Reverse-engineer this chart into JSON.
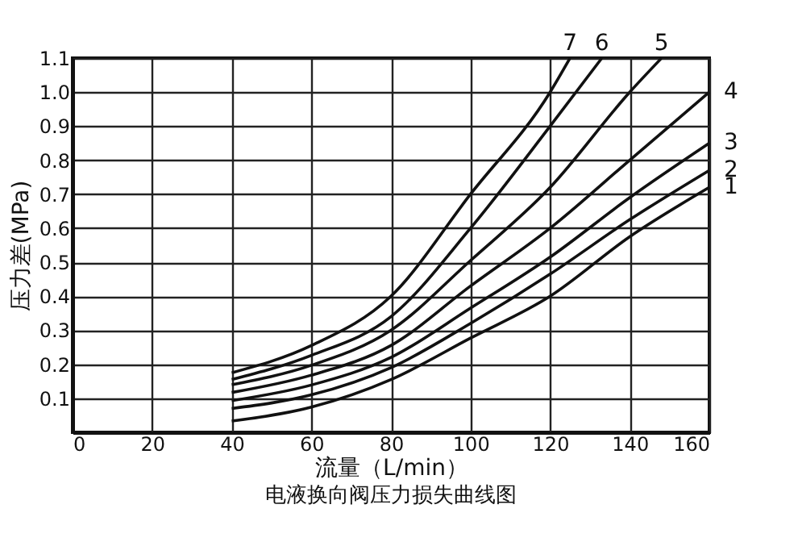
{
  "chart_data": {
    "type": "line",
    "title": "电液换向阀压力损失曲线图",
    "xlabel": "流量（L/min）",
    "ylabel": "压力差(MPa)",
    "xlim": [
      0,
      160
    ],
    "xticks": [
      0,
      20,
      40,
      60,
      80,
      100,
      120,
      140,
      160
    ],
    "ylim": [
      0,
      1.1
    ],
    "yticks": [
      {
        "value": 0,
        "label": null
      },
      0.1,
      0.2,
      0.3,
      0.4,
      0.5,
      0.6,
      0.7,
      0.8,
      0.9,
      {
        "value": 1.0,
        "label": "1.0"
      },
      1.1
    ],
    "grid": true,
    "legend": false,
    "line_style": "solid",
    "marker": "none",
    "series": [
      {
        "name": "1",
        "color": "#111111",
        "x": [
          40,
          60,
          80,
          100,
          120,
          140,
          160
        ],
        "values": [
          0.033,
          0.074,
          0.155,
          0.277,
          0.4,
          0.575,
          0.72
        ]
      },
      {
        "name": "2",
        "color": "#111111",
        "x": [
          40,
          60,
          80,
          100,
          120,
          140,
          160
        ],
        "values": [
          0.07,
          0.11,
          0.19,
          0.32,
          0.465,
          0.625,
          0.77
        ]
      },
      {
        "name": "3",
        "color": "#111111",
        "x": [
          40,
          60,
          80,
          100,
          120,
          140,
          160
        ],
        "values": [
          0.093,
          0.139,
          0.22,
          0.365,
          0.515,
          0.69,
          0.85
        ]
      },
      {
        "name": "4",
        "color": "#111111",
        "x": [
          40,
          60,
          80,
          100,
          120,
          140,
          160
        ],
        "values": [
          0.117,
          0.168,
          0.255,
          0.43,
          0.6,
          0.8,
          1.0
        ]
      },
      {
        "name": "5",
        "color": "#111111",
        "x": [
          40,
          60,
          80,
          100,
          120,
          140,
          148
        ],
        "values": [
          0.14,
          0.197,
          0.3,
          0.505,
          0.72,
          1.0,
          1.1
        ]
      },
      {
        "name": "6",
        "color": "#111111",
        "x": [
          40,
          60,
          80,
          100,
          120,
          133
        ],
        "values": [
          0.155,
          0.226,
          0.34,
          0.6,
          0.9,
          1.1
        ]
      },
      {
        "name": "7",
        "color": "#111111",
        "x": [
          40,
          60,
          80,
          100,
          120,
          125
        ],
        "values": [
          0.175,
          0.255,
          0.4,
          0.7,
          1.0,
          1.1
        ]
      }
    ]
  }
}
